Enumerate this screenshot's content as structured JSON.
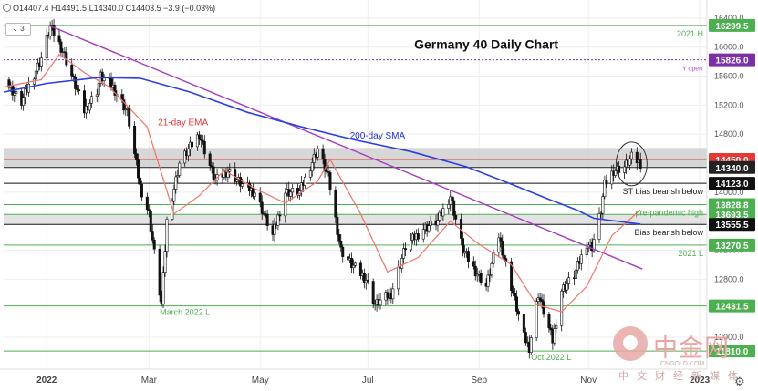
{
  "header": {
    "ohlc": "O14407.4  H14491.5  L14340.0  C14403.5  −3.9 (−0.03%)",
    "indicator_count": "3"
  },
  "chart_data": {
    "type": "candlestick",
    "title": "Germany 40 Daily Chart",
    "xlabel": "",
    "ylabel": "",
    "y_axis_side": "right",
    "grid": true,
    "ylim": [
      11560,
      16650
    ],
    "y_ticks": [
      16400,
      16000,
      15600,
      15200,
      14800,
      14400,
      14000,
      13600,
      13200,
      12800,
      12400,
      12000
    ],
    "y_tick_labels": [
      "16400.0",
      "16000.0",
      "15600.0",
      "15200.0",
      "14800.0",
      "14400.0",
      "14000.0",
      "13600.0",
      "13200.0",
      "12800.0",
      "12400.0",
      "12000.0"
    ],
    "x_range": [
      "2021-12-10",
      "2023-01-06"
    ],
    "x_ticks": [
      {
        "date": "2022-01-03",
        "label": "2022"
      },
      {
        "date": "2022-03-01",
        "label": "Mar"
      },
      {
        "date": "2022-05-02",
        "label": "May"
      },
      {
        "date": "2022-07-01",
        "label": "Jul"
      },
      {
        "date": "2022-09-01",
        "label": "Sep"
      },
      {
        "date": "2022-11-01",
        "label": "Nov"
      },
      {
        "date": "2023-01-02",
        "label": "2023"
      }
    ],
    "price_path": [
      {
        "date": "2021-12-10",
        "close": 15550
      },
      {
        "date": "2021-12-20",
        "close": 15240
      },
      {
        "date": "2021-12-31",
        "close": 15850
      },
      {
        "date": "2022-01-05",
        "close": 16285
      },
      {
        "date": "2022-01-12",
        "close": 15950
      },
      {
        "date": "2022-01-24",
        "close": 15120
      },
      {
        "date": "2022-01-31",
        "close": 15400
      },
      {
        "date": "2022-02-02",
        "close": 15600
      },
      {
        "date": "2022-02-09",
        "close": 15450
      },
      {
        "date": "2022-02-17",
        "close": 15100
      },
      {
        "date": "2022-02-24",
        "close": 14080
      },
      {
        "date": "2022-03-01",
        "close": 13700
      },
      {
        "date": "2022-03-08",
        "close": 12440
      },
      {
        "date": "2022-03-11",
        "close": 13600
      },
      {
        "date": "2022-03-18",
        "close": 14400
      },
      {
        "date": "2022-03-29",
        "close": 14800
      },
      {
        "date": "2022-04-07",
        "close": 14150
      },
      {
        "date": "2022-04-14",
        "close": 14300
      },
      {
        "date": "2022-04-22",
        "close": 14100
      },
      {
        "date": "2022-04-29",
        "close": 14000
      },
      {
        "date": "2022-05-09",
        "close": 13400
      },
      {
        "date": "2022-05-16",
        "close": 14000
      },
      {
        "date": "2022-05-24",
        "close": 14000
      },
      {
        "date": "2022-06-03",
        "close": 14600
      },
      {
        "date": "2022-06-09",
        "close": 14200
      },
      {
        "date": "2022-06-16",
        "close": 13200
      },
      {
        "date": "2022-06-22",
        "close": 13000
      },
      {
        "date": "2022-06-30",
        "close": 12800
      },
      {
        "date": "2022-07-05",
        "close": 12450
      },
      {
        "date": "2022-07-14",
        "close": 12600
      },
      {
        "date": "2022-07-22",
        "close": 13250
      },
      {
        "date": "2022-08-01",
        "close": 13500
      },
      {
        "date": "2022-08-09",
        "close": 13600
      },
      {
        "date": "2022-08-16",
        "close": 13950
      },
      {
        "date": "2022-08-23",
        "close": 13200
      },
      {
        "date": "2022-08-29",
        "close": 12950
      },
      {
        "date": "2022-09-05",
        "close": 12700
      },
      {
        "date": "2022-09-12",
        "close": 13400
      },
      {
        "date": "2022-09-19",
        "close": 12700
      },
      {
        "date": "2022-09-26",
        "close": 12000
      },
      {
        "date": "2022-09-29",
        "close": 11860
      },
      {
        "date": "2022-10-04",
        "close": 12600
      },
      {
        "date": "2022-10-12",
        "close": 11950
      },
      {
        "date": "2022-10-17",
        "close": 12650
      },
      {
        "date": "2022-10-24",
        "close": 12850
      },
      {
        "date": "2022-10-31",
        "close": 13300
      },
      {
        "date": "2022-11-03",
        "close": 13250
      },
      {
        "date": "2022-11-08",
        "close": 13750
      },
      {
        "date": "2022-11-10",
        "close": 14100
      },
      {
        "date": "2022-11-15",
        "close": 14300
      },
      {
        "date": "2022-11-21",
        "close": 14350
      },
      {
        "date": "2022-11-25",
        "close": 14480
      },
      {
        "date": "2022-11-30",
        "close": 14400
      }
    ],
    "series": [
      {
        "name": "21-day EMA",
        "color": "#f0726c",
        "points": [
          {
            "date": "2021-12-10",
            "value": 15450
          },
          {
            "date": "2021-12-31",
            "value": 15550
          },
          {
            "date": "2022-01-10",
            "value": 15900
          },
          {
            "date": "2022-01-24",
            "value": 15650
          },
          {
            "date": "2022-02-07",
            "value": 15450
          },
          {
            "date": "2022-02-28",
            "value": 14900
          },
          {
            "date": "2022-03-15",
            "value": 13700
          },
          {
            "date": "2022-03-29",
            "value": 13950
          },
          {
            "date": "2022-04-12",
            "value": 14300
          },
          {
            "date": "2022-04-29",
            "value": 14050
          },
          {
            "date": "2022-05-16",
            "value": 13850
          },
          {
            "date": "2022-06-03",
            "value": 14150
          },
          {
            "date": "2022-06-10",
            "value": 14450
          },
          {
            "date": "2022-06-27",
            "value": 13700
          },
          {
            "date": "2022-07-12",
            "value": 12900
          },
          {
            "date": "2022-07-29",
            "value": 13100
          },
          {
            "date": "2022-08-16",
            "value": 13600
          },
          {
            "date": "2022-08-31",
            "value": 13300
          },
          {
            "date": "2022-09-19",
            "value": 13000
          },
          {
            "date": "2022-10-03",
            "value": 12450
          },
          {
            "date": "2022-10-17",
            "value": 12350
          },
          {
            "date": "2022-10-31",
            "value": 12700
          },
          {
            "date": "2022-11-14",
            "value": 13400
          },
          {
            "date": "2022-11-30",
            "value": 13760
          }
        ]
      },
      {
        "name": "200-day SMA",
        "color": "#2d3fe0",
        "points": [
          {
            "date": "2021-12-10",
            "value": 15380
          },
          {
            "date": "2022-01-03",
            "value": 15500
          },
          {
            "date": "2022-02-01",
            "value": 15580
          },
          {
            "date": "2022-02-24",
            "value": 15570
          },
          {
            "date": "2022-03-24",
            "value": 15380
          },
          {
            "date": "2022-04-25",
            "value": 15100
          },
          {
            "date": "2022-05-25",
            "value": 14900
          },
          {
            "date": "2022-06-24",
            "value": 14720
          },
          {
            "date": "2022-07-25",
            "value": 14560
          },
          {
            "date": "2022-08-25",
            "value": 14350
          },
          {
            "date": "2022-09-20",
            "value": 14100
          },
          {
            "date": "2022-10-10",
            "value": 13900
          },
          {
            "date": "2022-10-25",
            "value": 13760
          },
          {
            "date": "2022-11-04",
            "value": 13640
          },
          {
            "date": "2022-11-30",
            "value": 13560
          }
        ]
      }
    ],
    "trendline": {
      "color": "#a43cc0",
      "start": {
        "date": "2022-01-05",
        "value": 16290
      },
      "end": {
        "date": "2022-12-01",
        "value": 12940
      }
    },
    "zones": [
      {
        "from": 14340,
        "to": 14610,
        "color": "#c9c9c9"
      },
      {
        "from": 13555.5,
        "to": 13693.5,
        "color": "#d9d9d9"
      }
    ],
    "levels": [
      {
        "value": 16299.5,
        "label": "16299.5",
        "color": "#4caf50",
        "note": "2021 H"
      },
      {
        "value": 15826.0,
        "label": "15826.0",
        "color": "#7b2fa8",
        "note": "Y open",
        "style": "dotted"
      },
      {
        "value": 14450.0,
        "label": "14450.0",
        "color": "#e53935",
        "note": ""
      },
      {
        "value": 14340.0,
        "label": "14340.0",
        "color": "#222222",
        "note": ""
      },
      {
        "value": 14123.0,
        "label": "14123.0",
        "color": "#111111",
        "note": "ST bias bearish below"
      },
      {
        "value": 13828.8,
        "label": "13828.8",
        "color": "#4caf50",
        "note": "pre-pandemic high"
      },
      {
        "value": 13693.5,
        "label": "13693.5",
        "color": "#4caf50",
        "note": ""
      },
      {
        "value": 13555.5,
        "label": "13555.5",
        "color": "#111111",
        "note": "Bias bearish below"
      },
      {
        "value": 13270.5,
        "label": "13270.5",
        "color": "#4caf50",
        "note": "2021 L"
      },
      {
        "value": 12431.5,
        "label": "12431.5",
        "color": "#4caf50",
        "note": "March 2022 L"
      },
      {
        "value": 11810.0,
        "label": "11810.0",
        "color": "#4caf50",
        "note": "Oct 2022 L"
      }
    ],
    "annotations": [
      {
        "text": "21-day EMA",
        "color": "#e53935",
        "date": "2022-03-06",
        "value": 14920
      },
      {
        "text": "200-day SMA",
        "color": "#1f2fd0",
        "date": "2022-06-21",
        "value": 14740
      },
      {
        "text": "Germany 40 Daily Chart",
        "color": "#111111",
        "date": "2022-09-05",
        "value": 15980,
        "size": "title"
      }
    ],
    "highlight_ellipse": {
      "date": "2022-11-25",
      "value": 14390
    }
  },
  "watermark": {
    "brand": "中金网",
    "site": "CNGOLD.COM",
    "sub": "中文财经新媒体"
  }
}
